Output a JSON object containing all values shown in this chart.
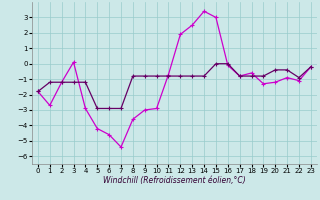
{
  "xlabel": "Windchill (Refroidissement éolien,°C)",
  "bg_color": "#cce8e8",
  "grid_color": "#99cccc",
  "line_color1": "#cc00cc",
  "line_color2": "#660066",
  "x": [
    0,
    1,
    2,
    3,
    4,
    5,
    6,
    7,
    8,
    9,
    10,
    11,
    12,
    13,
    14,
    15,
    16,
    17,
    18,
    19,
    20,
    21,
    22,
    23
  ],
  "series1": [
    -1.8,
    -2.7,
    -1.2,
    0.1,
    -2.9,
    -4.2,
    -4.6,
    -5.4,
    -3.6,
    -3.0,
    -2.9,
    -0.7,
    1.9,
    2.5,
    3.4,
    3.0,
    -0.1,
    -0.8,
    -0.6,
    -1.3,
    -1.2,
    -0.9,
    -1.1,
    -0.2
  ],
  "series2": [
    -1.8,
    -1.2,
    -1.2,
    -1.2,
    -1.2,
    -2.9,
    -2.9,
    -2.9,
    -0.8,
    -0.8,
    -0.8,
    -0.8,
    -0.8,
    -0.8,
    -0.8,
    0.0,
    0.0,
    -0.8,
    -0.8,
    -0.8,
    -0.4,
    -0.4,
    -0.9,
    -0.2
  ],
  "ylim": [
    -6.5,
    4.0
  ],
  "yticks": [
    -6,
    -5,
    -4,
    -3,
    -2,
    -1,
    0,
    1,
    2,
    3
  ],
  "xlim": [
    -0.5,
    23.5
  ],
  "xticks": [
    0,
    1,
    2,
    3,
    4,
    5,
    6,
    7,
    8,
    9,
    10,
    11,
    12,
    13,
    14,
    15,
    16,
    17,
    18,
    19,
    20,
    21,
    22,
    23
  ],
  "tick_labelsize": 5,
  "xlabel_fontsize": 5.5
}
